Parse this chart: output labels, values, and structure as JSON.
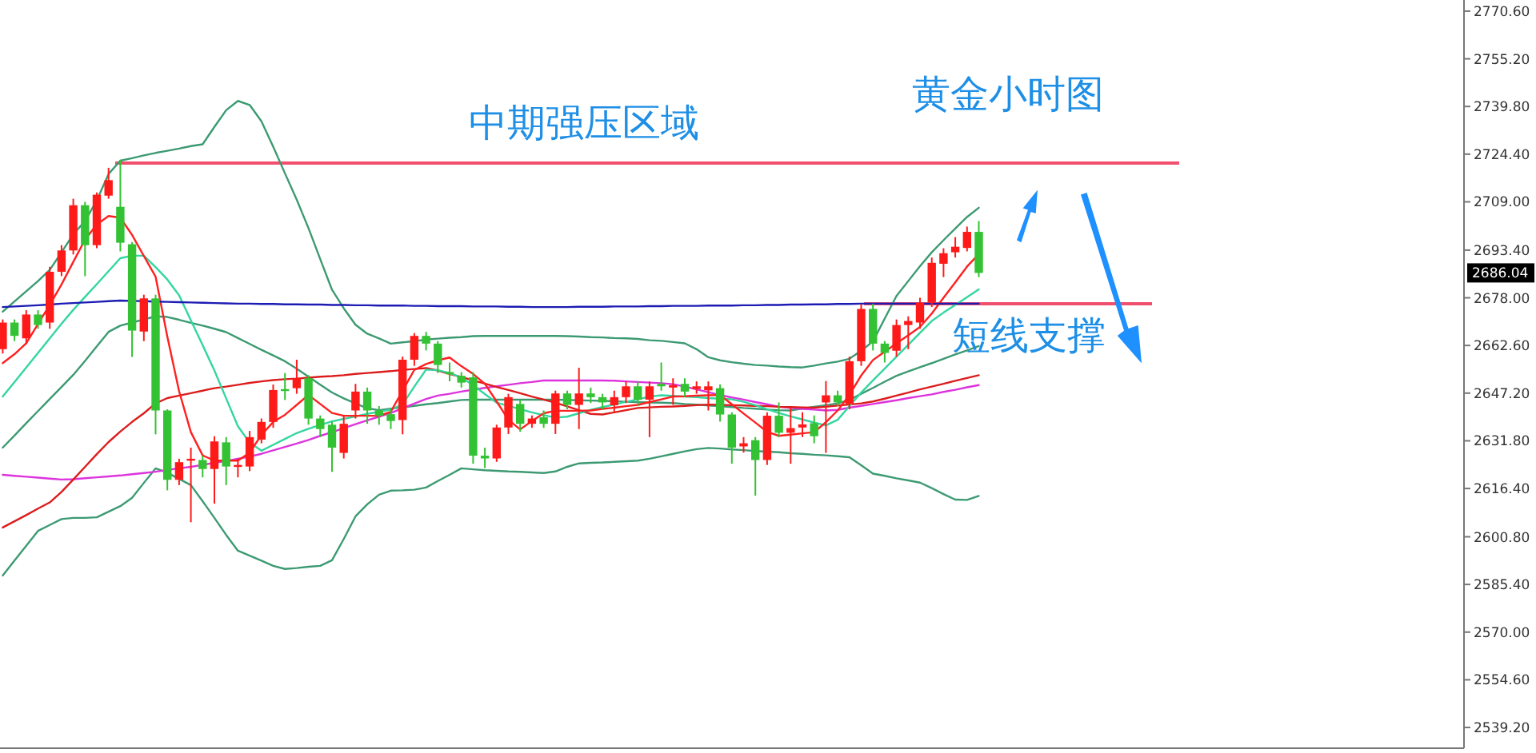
{
  "chart_data": {
    "type": "candlestick",
    "title": "黄金小时图",
    "tick_labels": "y",
    "ylim": [
      2532.5,
      2774.2
    ],
    "yticks": [
      {
        "value": 2770.6,
        "label": "2770.60"
      },
      {
        "value": 2755.2,
        "label": "2755.20"
      },
      {
        "value": 2739.8,
        "label": "2739.80"
      },
      {
        "value": 2724.4,
        "label": "2724.40"
      },
      {
        "value": 2709.0,
        "label": "2709.00"
      },
      {
        "value": 2693.4,
        "label": "2693.40"
      },
      {
        "value": 2678.0,
        "label": "2678.00"
      },
      {
        "value": 2662.6,
        "label": "2662.60"
      },
      {
        "value": 2647.2,
        "label": "2647.20"
      },
      {
        "value": 2631.8,
        "label": "2631.80"
      },
      {
        "value": 2616.4,
        "label": "2616.40"
      },
      {
        "value": 2600.8,
        "label": "2600.80"
      },
      {
        "value": 2585.4,
        "label": "2585.40"
      },
      {
        "value": 2570.0,
        "label": "2570.00"
      },
      {
        "value": 2554.6,
        "label": "2554.60"
      },
      {
        "value": 2539.2,
        "label": "2539.20"
      }
    ],
    "categories": [
      null,
      null,
      null,
      null,
      null,
      null,
      null,
      null,
      null,
      null,
      null,
      null,
      null,
      null,
      null,
      null,
      null,
      null,
      null,
      null,
      null,
      null,
      null,
      null,
      null,
      null,
      null,
      null,
      null,
      null,
      null,
      null,
      null,
      null,
      null,
      null,
      null,
      null,
      null,
      null,
      null,
      null,
      null,
      null,
      null,
      null,
      null,
      null,
      null,
      null,
      null,
      null,
      null,
      null,
      null,
      null,
      null,
      null,
      null,
      null,
      null,
      null,
      null,
      null,
      null,
      null,
      null,
      null,
      null,
      null,
      null,
      null,
      null,
      null,
      null,
      null,
      null,
      null,
      null,
      null,
      null,
      null,
      null,
      null
    ],
    "ohlc": [
      [
        2661.4,
        2671,
        2660,
        2670.0
      ],
      [
        2670.0,
        2671,
        2664,
        2665.7
      ],
      [
        2664.9,
        2674,
        2663,
        2672.6
      ],
      [
        2672.6,
        2674,
        2668,
        2669.2
      ],
      [
        2670.0,
        2688,
        2668,
        2686.4
      ],
      [
        2686.4,
        2695,
        2685,
        2693.3
      ],
      [
        2693.3,
        2710,
        2692,
        2707.9
      ],
      [
        2707.9,
        2709,
        2685,
        2695.0
      ],
      [
        2695.0,
        2712,
        2694,
        2711.3
      ],
      [
        2711.0,
        2720,
        2710,
        2716.0
      ],
      [
        2707.4,
        2722.6,
        2693,
        2695.8
      ],
      [
        2695.3,
        2696,
        2658.9,
        2667.4
      ],
      [
        2667.1,
        2679,
        2664,
        2677.8
      ],
      [
        2677.8,
        2679,
        2633.9,
        2641.6
      ],
      [
        2641.6,
        2642,
        2615.8,
        2619.2
      ],
      [
        2619.2,
        2626,
        2617.5,
        2624.9
      ],
      [
        2625.6,
        2629.6,
        2605.5,
        2626.0
      ],
      [
        2625.6,
        2627,
        2620,
        2622.7
      ],
      [
        2622.7,
        2633.3,
        2611.5,
        2631.6
      ],
      [
        2631.3,
        2633,
        2617.5,
        2623.5
      ],
      [
        2623.5,
        2626.1,
        2620,
        2624.0
      ],
      [
        2623.5,
        2635,
        2622,
        2633.0
      ],
      [
        2632.2,
        2639,
        2631,
        2637.9
      ],
      [
        2637.9,
        2650,
        2636,
        2648.2
      ],
      [
        2648.5,
        2653.7,
        2645,
        2648.0
      ],
      [
        2648.8,
        2658.0,
        2647,
        2652.0
      ],
      [
        2652.0,
        2653,
        2637,
        2639.0
      ],
      [
        2639.0,
        2640,
        2633,
        2635.6
      ],
      [
        2637.0,
        2638,
        2621.8,
        2629.6
      ],
      [
        2627.9,
        2639.9,
        2626.1,
        2637.3
      ],
      [
        2641.6,
        2650.2,
        2639,
        2647.7
      ],
      [
        2647.7,
        2649,
        2637.3,
        2641.6
      ],
      [
        2641.6,
        2643,
        2637,
        2639.9
      ],
      [
        2640.4,
        2642,
        2635.6,
        2638.2
      ],
      [
        2638.5,
        2659,
        2633.9,
        2658.0
      ],
      [
        2658.0,
        2666.6,
        2656,
        2665.7
      ],
      [
        2665.7,
        2667,
        2661,
        2663.2
      ],
      [
        2663.2,
        2664,
        2653.7,
        2656.3
      ],
      [
        2654.0,
        2657.1,
        2651,
        2653.3
      ],
      [
        2652.8,
        2654,
        2649,
        2650.6
      ],
      [
        2652.3,
        2654,
        2624.4,
        2627.0
      ],
      [
        2627.0,
        2629.6,
        2623.0,
        2626.1
      ],
      [
        2626.1,
        2637,
        2625,
        2636.1
      ],
      [
        2636.1,
        2647,
        2634,
        2645.9
      ],
      [
        2643.7,
        2645,
        2634.7,
        2637.3
      ],
      [
        2637.3,
        2640,
        2636,
        2639.0
      ],
      [
        2639.4,
        2641.6,
        2636,
        2637.3
      ],
      [
        2637.3,
        2648,
        2634,
        2647.1
      ],
      [
        2647.1,
        2648,
        2642,
        2643.4
      ],
      [
        2643.4,
        2655.4,
        2635.6,
        2647.1
      ],
      [
        2647.1,
        2649,
        2644,
        2645.9
      ],
      [
        2645.9,
        2647,
        2642,
        2644.2
      ],
      [
        2643.3,
        2648,
        2640.8,
        2645.9
      ],
      [
        2645.9,
        2651,
        2644,
        2649.4
      ],
      [
        2649.4,
        2651,
        2643,
        2645.1
      ],
      [
        2645.1,
        2651,
        2633.0,
        2649.4
      ],
      [
        2650.2,
        2657.1,
        2648,
        2649.4
      ],
      [
        2649.0,
        2652,
        2643.4,
        2649.8
      ],
      [
        2650.2,
        2652,
        2646,
        2647.7
      ],
      [
        2648.5,
        2651,
        2647,
        2649.4
      ],
      [
        2648.1,
        2651,
        2641.6,
        2649.4
      ],
      [
        2648.8,
        2650,
        2638,
        2640.3
      ],
      [
        2640.3,
        2641,
        2624.4,
        2629.6
      ],
      [
        2630.0,
        2633,
        2628,
        2631.0
      ],
      [
        2632.0,
        2633,
        2614.1,
        2625.6
      ],
      [
        2625.6,
        2641,
        2624,
        2639.9
      ],
      [
        2639.9,
        2644.2,
        2633,
        2634.4
      ],
      [
        2634.4,
        2642.5,
        2624.4,
        2635.9
      ],
      [
        2636.1,
        2641,
        2633,
        2637.1
      ],
      [
        2637.5,
        2640,
        2631,
        2633.3
      ],
      [
        2644.2,
        2651.1,
        2627.9,
        2646.5
      ],
      [
        2646.5,
        2648,
        2643,
        2644.2
      ],
      [
        2643.7,
        2659,
        2642,
        2657.5
      ],
      [
        2657.5,
        2676,
        2656,
        2674.4
      ],
      [
        2674.4,
        2676.1,
        2661,
        2663.2
      ],
      [
        2663.2,
        2664,
        2657.1,
        2660.2
      ],
      [
        2660.9,
        2671,
        2659,
        2669.2
      ],
      [
        2669.2,
        2672,
        2661.4,
        2670.5
      ],
      [
        2670.0,
        2678,
        2668,
        2676.4
      ],
      [
        2676.4,
        2691,
        2675,
        2689.3
      ],
      [
        2689.0,
        2694,
        2684.7,
        2692.4
      ],
      [
        2692.7,
        2697.6,
        2691,
        2694.5
      ],
      [
        2694.1,
        2701,
        2693,
        2699.3
      ],
      [
        2699.3,
        2702.8,
        2684.7,
        2686.04
      ]
    ],
    "series": [
      {
        "type": "line",
        "color": "#3c9a72",
        "values": [
          2673.5,
          2676.8,
          2680.1,
          2683.4,
          2687.0,
          2692.7,
          2698.5,
          2702.8,
          2709.5,
          2718.0,
          2722.3,
          2723.1,
          2724.0,
          2724.8,
          2725.5,
          2726.2,
          2727.0,
          2727.6,
          2733.2,
          2738.6,
          2741.6,
          2740.3,
          2735.0,
          2726.8,
          2718.2,
          2709.7,
          2700.5,
          2690.5,
          2680.6,
          2674.6,
          2669.3,
          2666.4,
          2664.9,
          2663.2,
          2663.6,
          2664.0,
          2664.5,
          2664.8,
          2665.1,
          2665.3,
          2665.6,
          2665.7,
          2665.7,
          2665.7,
          2665.7,
          2665.7,
          2665.7,
          2665.7,
          2665.6,
          2665.5,
          2665.3,
          2665.2,
          2665.0,
          2664.9,
          2664.7,
          2664.3,
          2664.1,
          2663.7,
          2663.3,
          2661.4,
          2658.8,
          2657.8,
          2657.2,
          2656.7,
          2656.3,
          2656.1,
          2655.8,
          2655.6,
          2655.5,
          2656.1,
          2656.8,
          2657.4,
          2658.3,
          2660.9,
          2663.9,
          2671.3,
          2678.6,
          2683.4,
          2688.2,
          2692.7,
          2696.6,
          2700.4,
          2704.1,
          2707.1
        ]
      },
      {
        "type": "line",
        "color": "#3c9a72",
        "values": [
          2629.6,
          2633.5,
          2637.5,
          2641.4,
          2645.3,
          2649.2,
          2653.1,
          2657.6,
          2662.3,
          2667.0,
          2669.0,
          2670.0,
          2671.0,
          2672.0,
          2671.8,
          2670.9,
          2669.9,
          2669.0,
          2668.0,
          2666.9,
          2665.0,
          2663.1,
          2661.2,
          2659.4,
          2657.5,
          2655.1,
          2652.5,
          2649.9,
          2647.4,
          2645.5,
          2643.9,
          2642.3,
          2641.7,
          2642.2,
          2642.6,
          2643.1,
          2643.6,
          2644.0,
          2644.5,
          2645.0,
          2645.1,
          2645.1,
          2645.1,
          2645.1,
          2645.1,
          2645.1,
          2645.1,
          2645.1,
          2645.0,
          2644.9,
          2644.8,
          2644.7,
          2644.6,
          2644.4,
          2644.3,
          2644.2,
          2644.1,
          2644.0,
          2643.7,
          2643.5,
          2643.2,
          2643.0,
          2642.7,
          2642.4,
          2642.2,
          2641.9,
          2641.7,
          2641.6,
          2642.2,
          2642.8,
          2643.3,
          2643.9,
          2645.0,
          2647.0,
          2648.9,
          2650.9,
          2652.8,
          2654.2,
          2655.6,
          2656.9,
          2658.3,
          2659.7,
          2661.0,
          2662.4
        ]
      },
      {
        "type": "line",
        "color": "#3c9a72",
        "values": [
          2588.3,
          2593.1,
          2597.9,
          2602.7,
          2604.6,
          2606.5,
          2606.9,
          2606.9,
          2607.1,
          2608.9,
          2610.7,
          2613.4,
          2618.2,
          2622.9,
          2621.5,
          2619.5,
          2617.5,
          2612.3,
          2606.9,
          2601.4,
          2596.3,
          2594.7,
          2593.1,
          2591.4,
          2590.4,
          2590.7,
          2591.1,
          2591.4,
          2593.2,
          2600.1,
          2607.4,
          2611.3,
          2614.4,
          2615.7,
          2615.8,
          2616.0,
          2616.7,
          2618.8,
          2620.8,
          2622.9,
          2622.6,
          2622.3,
          2622.1,
          2621.9,
          2621.8,
          2621.6,
          2621.4,
          2621.9,
          2623.4,
          2624.5,
          2624.7,
          2624.8,
          2625.0,
          2625.2,
          2625.4,
          2626.0,
          2626.8,
          2627.6,
          2628.4,
          2629.1,
          2629.5,
          2629.3,
          2629.0,
          2628.8,
          2628.5,
          2628.3,
          2628.1,
          2627.8,
          2627.6,
          2627.3,
          2627.1,
          2626.8,
          2626.5,
          2623.9,
          2621.2,
          2620.5,
          2619.7,
          2619.0,
          2618.3,
          2616.5,
          2614.6,
          2612.8,
          2612.7,
          2614.0
        ]
      },
      {
        "type": "line",
        "color": "#dd33dd",
        "values": [
          2620.8,
          2620.5,
          2620.2,
          2619.9,
          2619.6,
          2619.3,
          2619.4,
          2619.7,
          2620.0,
          2620.3,
          2620.6,
          2621.0,
          2621.4,
          2621.8,
          2622.4,
          2622.9,
          2623.4,
          2624.0,
          2624.7,
          2625.3,
          2626.0,
          2626.7,
          2627.6,
          2628.7,
          2629.8,
          2630.9,
          2632.1,
          2633.4,
          2634.6,
          2635.9,
          2637.2,
          2638.4,
          2639.6,
          2640.8,
          2642.3,
          2643.8,
          2645.3,
          2646.4,
          2647.0,
          2647.7,
          2648.3,
          2648.9,
          2649.4,
          2649.9,
          2650.4,
          2650.8,
          2651.3,
          2651.3,
          2651.3,
          2651.3,
          2651.3,
          2651.3,
          2651.2,
          2651.0,
          2650.8,
          2650.6,
          2650.4,
          2650.1,
          2649.3,
          2648.4,
          2647.5,
          2646.6,
          2645.8,
          2645.1,
          2644.3,
          2643.6,
          2642.8,
          2642.4,
          2642.1,
          2641.9,
          2641.6,
          2641.8,
          2642.5,
          2643.1,
          2643.7,
          2644.3,
          2644.9,
          2645.6,
          2646.2,
          2646.8,
          2647.6,
          2648.3,
          2649.1,
          2649.8
        ]
      },
      {
        "type": "line",
        "color": "#dd1c1c",
        "values": [
          2603.8,
          2605.8,
          2607.8,
          2609.9,
          2611.9,
          2615.3,
          2619.3,
          2623.4,
          2627.5,
          2631.4,
          2634.8,
          2637.9,
          2640.7,
          2643.9,
          2645.6,
          2646.4,
          2647.2,
          2648.0,
          2648.8,
          2649.3,
          2649.9,
          2650.5,
          2651.0,
          2651.4,
          2651.7,
          2651.9,
          2652.2,
          2652.5,
          2652.7,
          2653.0,
          2653.4,
          2653.7,
          2654.0,
          2654.3,
          2654.7,
          2655.0,
          2655.3,
          2654.5,
          2653.4,
          2652.4,
          2651.3,
          2650.3,
          2649.2,
          2648.2,
          2647.2,
          2646.1,
          2645.1,
          2644.1,
          2642.9,
          2641.7,
          2640.5,
          2640.3,
          2641.0,
          2641.7,
          2642.4,
          2642.6,
          2642.8,
          2642.9,
          2643.1,
          2643.3,
          2643.5,
          2643.4,
          2643.3,
          2643.2,
          2643.1,
          2643.0,
          2642.8,
          2642.7,
          2642.6,
          2642.5,
          2642.8,
          2643.2,
          2643.5,
          2643.9,
          2644.5,
          2645.4,
          2646.4,
          2647.4,
          2648.4,
          2649.3,
          2650.2,
          2651.2,
          2652.1,
          2653.0
        ]
      },
      {
        "type": "line",
        "color": "#33d6a0",
        "values": [
          2646.1,
          2650.8,
          2655.5,
          2660.2,
          2664.9,
          2669.6,
          2674.1,
          2678.3,
          2682.4,
          2686.6,
          2690.8,
          2691.6,
          2691.6,
          2687.9,
          2683.9,
          2678.8,
          2670.7,
          2662.7,
          2654.5,
          2645.5,
          2636.5,
          2631.2,
          2628.6,
          2630.5,
          2632.4,
          2634.3,
          2635.7,
          2636.9,
          2638.1,
          2638.9,
          2639.7,
          2640.5,
          2641.2,
          2641.9,
          2643.6,
          2649.3,
          2654.8,
          2654.6,
          2653.7,
          2652.2,
          2649.8,
          2646.9,
          2644.1,
          2643.1,
          2642.0,
          2641.0,
          2640.1,
          2639.3,
          2639.6,
          2640.7,
          2641.8,
          2642.7,
          2643.5,
          2644.4,
          2645.2,
          2646.1,
          2646.5,
          2646.3,
          2646.1,
          2645.9,
          2645.6,
          2645.4,
          2645.2,
          2644.4,
          2643.3,
          2642.0,
          2640.8,
          2639.7,
          2638.7,
          2637.7,
          2636.8,
          2638.6,
          2643.0,
          2647.4,
          2651.3,
          2655.1,
          2659.0,
          2662.8,
          2666.7,
          2670.5,
          2673.2,
          2675.7,
          2678.2,
          2680.7
        ]
      },
      {
        "type": "line",
        "color": "#ff2020",
        "values": [
          2656.9,
          2659.8,
          2663.3,
          2669.5,
          2675.7,
          2682.3,
          2689.6,
          2696.8,
          2701.7,
          2704.4,
          2703.9,
          2698.3,
          2691.5,
          2684.8,
          2665.4,
          2647.8,
          2634.6,
          2627.1,
          2625.4,
          2625.4,
          2625.4,
          2628.0,
          2633.7,
          2637.9,
          2640.2,
          2643.4,
          2646.6,
          2643.7,
          2640.8,
          2639.9,
          2639.9,
          2639.9,
          2639.9,
          2641.2,
          2648.0,
          2654.7,
          2656.6,
          2657.8,
          2658.7,
          2655.9,
          2653.4,
          2650.2,
          2644.5,
          2638.6,
          2635.5,
          2638.2,
          2640.7,
          2641.5,
          2641.5,
          2641.5,
          2641.6,
          2642.1,
          2642.5,
          2643.0,
          2643.4,
          2644.3,
          2645.2,
          2646.1,
          2646.2,
          2646.4,
          2646.5,
          2646.6,
          2643.6,
          2640.6,
          2637.7,
          2634.7,
          2633.4,
          2633.8,
          2634.2,
          2634.6,
          2637.8,
          2641.6,
          2646.6,
          2652.9,
          2657.9,
          2660.6,
          2663.3,
          2665.9,
          2668.6,
          2672.9,
          2678.0,
          2683.0,
          2688.1,
          2692.1
        ]
      },
      {
        "type": "line",
        "color": "#1c1cb4",
        "values": [
          2675.0,
          2675.2,
          2675.4,
          2675.6,
          2675.8,
          2676.1,
          2676.3,
          2676.5,
          2676.7,
          2676.9,
          2677.1,
          2677.0,
          2676.9,
          2676.8,
          2676.7,
          2676.6,
          2676.5,
          2676.4,
          2676.3,
          2676.2,
          2676.1,
          2676.1,
          2676.0,
          2676.0,
          2675.9,
          2675.9,
          2675.8,
          2675.8,
          2675.7,
          2675.7,
          2675.6,
          2675.6,
          2675.5,
          2675.5,
          2675.5,
          2675.4,
          2675.4,
          2675.3,
          2675.3,
          2675.3,
          2675.2,
          2675.2,
          2675.2,
          2675.1,
          2675.1,
          2675.0,
          2675.0,
          2675.0,
          2675.0,
          2675.1,
          2675.1,
          2675.1,
          2675.2,
          2675.2,
          2675.2,
          2675.3,
          2675.3,
          2675.4,
          2675.4,
          2675.4,
          2675.5,
          2675.5,
          2675.5,
          2675.6,
          2675.6,
          2675.7,
          2675.7,
          2675.8,
          2675.8,
          2675.9,
          2675.9,
          2676.0,
          2676.0,
          2676.1,
          2676.1,
          2676.1,
          2676.1,
          2676.1,
          2676.1,
          2676.1,
          2676.1,
          2676.1,
          2676.1,
          2676.1
        ]
      }
    ],
    "ref_lines": [
      {
        "axis": "y",
        "value": 2721.5,
        "label": "中期强压区域",
        "color": "#f0506e"
      },
      {
        "axis": "y",
        "value": 2676.1,
        "label": "短线支撑",
        "color": "#f0506e"
      }
    ],
    "annotations": [
      "2686.04"
    ]
  }
}
